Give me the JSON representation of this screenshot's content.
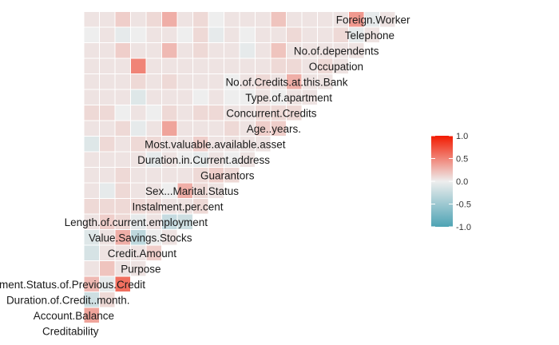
{
  "chart_data": {
    "type": "heatmap",
    "title": "",
    "variables": [
      "Creditability",
      "Account.Balance",
      "Duration.of.Credit..month.",
      "Payment.Status.of.Previous.Credit",
      "Purpose",
      "Credit.Amount",
      "Value.Savings.Stocks",
      "Length.of.current.employment",
      "Instalment.per.cent",
      "Sex...Marital.Status",
      "Guarantors",
      "Duration.in.Current.address",
      "Most.valuable.available.asset",
      "Age..years.",
      "Concurrent.Credits",
      "Type.of.apartment",
      "No.of.Credits.at.this.Bank",
      "Occupation",
      "No.of.dependents",
      "Telephone",
      "Foreign.Worker"
    ],
    "correlations": [
      [
        0.35
      ],
      [
        -0.2,
        0.1
      ],
      [
        0.25,
        -0.05,
        0.6
      ],
      [
        0.05,
        0.2,
        0.05,
        0.05
      ],
      [
        -0.15,
        0.05,
        0.05,
        0.05,
        0.15
      ],
      [
        -0.1,
        0.05,
        0.3,
        -0.3,
        0.0,
        0.05
      ],
      [
        0.05,
        0.15,
        0.1,
        -0.05,
        0.05,
        -0.25,
        -0.2
      ],
      [
        0.1,
        0.1,
        0.1,
        0.1,
        0.1,
        0.05,
        0.05,
        0.1
      ],
      [
        0.05,
        -0.05,
        0.1,
        0.05,
        0.05,
        0.0,
        0.3,
        0.1,
        0.05
      ],
      [
        0.05,
        0.05,
        0.1,
        0.05,
        0.05,
        0.05,
        0.05,
        0.1,
        0.15,
        0.1
      ],
      [
        0.05,
        0.05,
        0.05,
        0.05,
        -0.05,
        0.05,
        0.0,
        -0.05,
        0.05,
        0.0,
        0.05
      ],
      [
        -0.1,
        0.1,
        0.05,
        0.1,
        0.1,
        0.05,
        0.05,
        0.15,
        0.05,
        0.05,
        0.05,
        0.05
      ],
      [
        0.05,
        0.05,
        0.1,
        -0.05,
        0.05,
        0.35,
        0.05,
        0.05,
        0.05,
        0.1,
        0.05,
        0.15,
        0.15
      ],
      [
        0.1,
        0.1,
        0.0,
        0.05,
        0.0,
        0.1,
        0.05,
        0.1,
        0.1,
        0.05,
        0.05,
        0.1,
        0.1,
        0.1
      ],
      [
        0.05,
        0.05,
        0.05,
        -0.1,
        0.05,
        0.05,
        0.05,
        0.0,
        0.05,
        0.0,
        0.0,
        0.05,
        0.0,
        0.05,
        0.05
      ],
      [
        0.05,
        0.05,
        0.05,
        0.1,
        0.05,
        0.1,
        0.05,
        0.05,
        0.05,
        0.0,
        0.05,
        0.1,
        0.05,
        0.3,
        0.05,
        0.05
      ],
      [
        0.05,
        0.05,
        0.05,
        0.5,
        0.05,
        0.05,
        0.05,
        0.05,
        0.05,
        0.05,
        0.05,
        0.05,
        0.1,
        0.1,
        0.05,
        0.1,
        0.05
      ],
      [
        0.05,
        0.05,
        0.15,
        0.05,
        0.05,
        0.25,
        0.05,
        0.1,
        0.05,
        0.05,
        -0.05,
        0.05,
        0.2,
        0.05,
        0.05,
        0.05,
        0.05,
        0.05
      ],
      [
        0.0,
        0.05,
        -0.05,
        0.0,
        0.05,
        0.05,
        0.0,
        0.1,
        -0.05,
        0.05,
        0.0,
        0.05,
        0.05,
        0.1,
        0.05,
        0.05,
        0.1,
        -0.05,
        0.05
      ],
      [
        0.05,
        0.05,
        0.15,
        0.05,
        0.1,
        0.3,
        0.05,
        0.1,
        0.0,
        0.05,
        0.05,
        0.05,
        0.2,
        0.05,
        0.05,
        0.05,
        0.05,
        0.4,
        -0.05,
        0.05
      ]
    ],
    "legend": {
      "position": "right",
      "breaks": [
        1.0,
        0.5,
        0.0,
        -0.5,
        -1.0
      ],
      "tick_labels": [
        "1.0",
        "0.5",
        "0.0",
        "-0.5",
        "-1.0"
      ],
      "colors": {
        "low": "#4da3b4",
        "mid": "#eeeeee",
        "high": "#f21a00"
      }
    },
    "limits": [
      -1.0,
      1.0
    ]
  }
}
